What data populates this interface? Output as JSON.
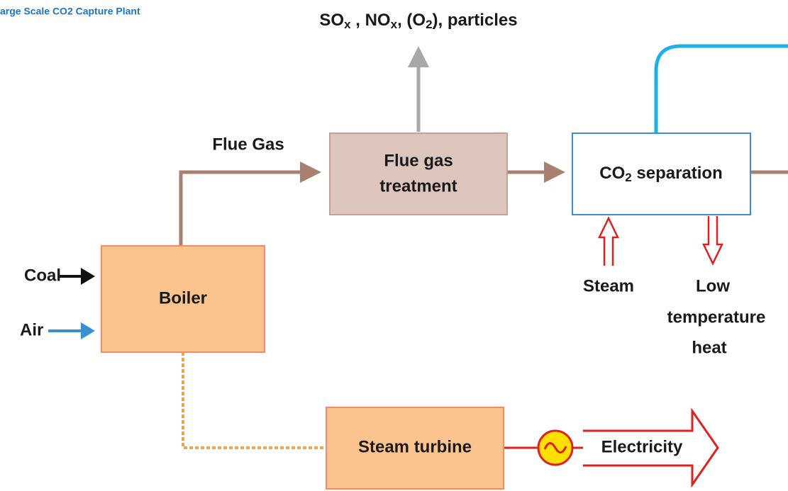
{
  "title": "arge Scale CO2 Capture Plant",
  "emissions": {
    "parts": [
      "SO",
      "x",
      " , NO",
      "x",
      ", (O",
      "2",
      "), particles"
    ]
  },
  "nodes": {
    "boiler": {
      "label": "Boiler"
    },
    "flue_gas_treatment": {
      "lines": [
        "Flue gas",
        "treatment"
      ]
    },
    "co2_separation": {
      "parts": [
        "CO",
        "2",
        " separation"
      ]
    },
    "steam_turbine": {
      "label": "Steam turbine"
    }
  },
  "labels": {
    "flue_gas": "Flue Gas",
    "coal": "Coal",
    "air": "Air",
    "steam": "Steam",
    "low_temperature_heat": [
      "Low",
      "temperature",
      "heat"
    ],
    "electricity": "Electricity"
  }
}
